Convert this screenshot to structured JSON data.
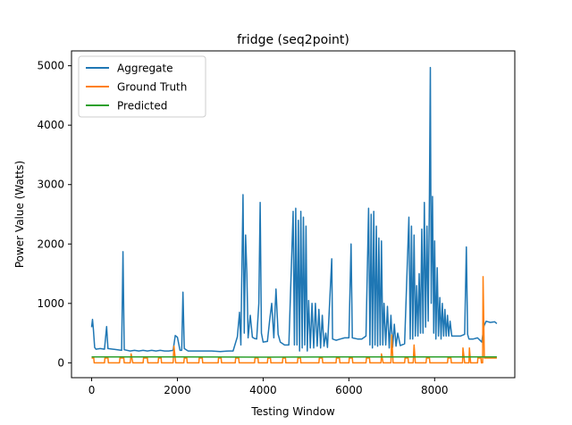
{
  "chart_data": {
    "type": "line",
    "title": "fridge (seq2point)",
    "xlabel": "Testing Window",
    "ylabel": "Power Value (Watts)",
    "xlim": [
      -470,
      9870
    ],
    "ylim": [
      -250,
      5250
    ],
    "xticks": [
      0,
      2000,
      4000,
      6000,
      8000
    ],
    "yticks": [
      0,
      1000,
      2000,
      3000,
      4000,
      5000
    ],
    "grid": false,
    "legend_position": "top-left",
    "series": [
      {
        "name": "Aggregate",
        "color": "#1f77b4",
        "points": [
          [
            0,
            600
          ],
          [
            20,
            730
          ],
          [
            40,
            560
          ],
          [
            70,
            260
          ],
          [
            100,
            230
          ],
          [
            200,
            240
          ],
          [
            300,
            230
          ],
          [
            350,
            610
          ],
          [
            380,
            240
          ],
          [
            500,
            230
          ],
          [
            700,
            210
          ],
          [
            730,
            1870
          ],
          [
            760,
            220
          ],
          [
            900,
            200
          ],
          [
            1000,
            210
          ],
          [
            1100,
            200
          ],
          [
            1200,
            210
          ],
          [
            1300,
            200
          ],
          [
            1400,
            210
          ],
          [
            1500,
            200
          ],
          [
            1600,
            210
          ],
          [
            1700,
            200
          ],
          [
            1800,
            200
          ],
          [
            1900,
            210
          ],
          [
            1950,
            460
          ],
          [
            2000,
            430
          ],
          [
            2060,
            210
          ],
          [
            2100,
            210
          ],
          [
            2130,
            1190
          ],
          [
            2160,
            240
          ],
          [
            2250,
            200
          ],
          [
            2400,
            200
          ],
          [
            2600,
            200
          ],
          [
            2800,
            200
          ],
          [
            3000,
            190
          ],
          [
            3200,
            200
          ],
          [
            3300,
            200
          ],
          [
            3400,
            440
          ],
          [
            3450,
            850
          ],
          [
            3480,
            300
          ],
          [
            3500,
            1300
          ],
          [
            3530,
            2830
          ],
          [
            3560,
            500
          ],
          [
            3590,
            2150
          ],
          [
            3620,
            1500
          ],
          [
            3650,
            420
          ],
          [
            3700,
            800
          ],
          [
            3750,
            430
          ],
          [
            3800,
            410
          ],
          [
            3850,
            400
          ],
          [
            3900,
            1000
          ],
          [
            3930,
            2700
          ],
          [
            3960,
            500
          ],
          [
            4000,
            350
          ],
          [
            4100,
            360
          ],
          [
            4150,
            700
          ],
          [
            4200,
            1000
          ],
          [
            4250,
            420
          ],
          [
            4300,
            1240
          ],
          [
            4350,
            480
          ],
          [
            4400,
            350
          ],
          [
            4500,
            300
          ],
          [
            4600,
            300
          ],
          [
            4700,
            2550
          ],
          [
            4730,
            300
          ],
          [
            4760,
            2600
          ],
          [
            4790,
            300
          ],
          [
            4820,
            2400
          ],
          [
            4850,
            200
          ],
          [
            4880,
            2550
          ],
          [
            4910,
            250
          ],
          [
            4940,
            2450
          ],
          [
            4970,
            300
          ],
          [
            5000,
            2300
          ],
          [
            5030,
            200
          ],
          [
            5060,
            1050
          ],
          [
            5100,
            250
          ],
          [
            5140,
            1000
          ],
          [
            5180,
            250
          ],
          [
            5220,
            1000
          ],
          [
            5260,
            280
          ],
          [
            5300,
            900
          ],
          [
            5340,
            250
          ],
          [
            5380,
            800
          ],
          [
            5420,
            280
          ],
          [
            5460,
            500
          ],
          [
            5500,
            260
          ],
          [
            5600,
            1750
          ],
          [
            5620,
            400
          ],
          [
            5700,
            380
          ],
          [
            5800,
            400
          ],
          [
            5900,
            420
          ],
          [
            6000,
            420
          ],
          [
            6050,
            2000
          ],
          [
            6080,
            420
          ],
          [
            6200,
            400
          ],
          [
            6300,
            400
          ],
          [
            6400,
            450
          ],
          [
            6460,
            2600
          ],
          [
            6490,
            300
          ],
          [
            6520,
            2500
          ],
          [
            6550,
            250
          ],
          [
            6580,
            2550
          ],
          [
            6610,
            300
          ],
          [
            6640,
            2300
          ],
          [
            6670,
            280
          ],
          [
            6700,
            2100
          ],
          [
            6730,
            300
          ],
          [
            6760,
            2050
          ],
          [
            6790,
            300
          ],
          [
            6820,
            1000
          ],
          [
            6860,
            300
          ],
          [
            6900,
            950
          ],
          [
            6940,
            250
          ],
          [
            6980,
            800
          ],
          [
            7020,
            260
          ],
          [
            7060,
            650
          ],
          [
            7100,
            280
          ],
          [
            7140,
            500
          ],
          [
            7200,
            290
          ],
          [
            7300,
            320
          ],
          [
            7400,
            2450
          ],
          [
            7430,
            400
          ],
          [
            7460,
            2300
          ],
          [
            7490,
            400
          ],
          [
            7520,
            2150
          ],
          [
            7550,
            450
          ],
          [
            7580,
            1300
          ],
          [
            7610,
            450
          ],
          [
            7640,
            1500
          ],
          [
            7670,
            500
          ],
          [
            7700,
            2250
          ],
          [
            7730,
            500
          ],
          [
            7760,
            2700
          ],
          [
            7790,
            600
          ],
          [
            7820,
            2300
          ],
          [
            7850,
            700
          ],
          [
            7880,
            2850
          ],
          [
            7900,
            4970
          ],
          [
            7920,
            1000
          ],
          [
            7950,
            2800
          ],
          [
            7980,
            500
          ],
          [
            8000,
            2050
          ],
          [
            8030,
            400
          ],
          [
            8060,
            1600
          ],
          [
            8090,
            450
          ],
          [
            8120,
            1100
          ],
          [
            8150,
            400
          ],
          [
            8180,
            1000
          ],
          [
            8210,
            450
          ],
          [
            8240,
            900
          ],
          [
            8270,
            450
          ],
          [
            8300,
            800
          ],
          [
            8330,
            450
          ],
          [
            8360,
            700
          ],
          [
            8400,
            450
          ],
          [
            8500,
            450
          ],
          [
            8600,
            450
          ],
          [
            8700,
            480
          ],
          [
            8740,
            1950
          ],
          [
            8770,
            480
          ],
          [
            8800,
            400
          ],
          [
            8900,
            400
          ],
          [
            9000,
            420
          ],
          [
            9100,
            350
          ],
          [
            9150,
            620
          ],
          [
            9200,
            700
          ],
          [
            9300,
            680
          ],
          [
            9400,
            690
          ],
          [
            9450,
            660
          ]
        ]
      },
      {
        "name": "Ground Truth",
        "color": "#ff7f0e",
        "points": [
          [
            0,
            80
          ],
          [
            50,
            80
          ],
          [
            60,
            0
          ],
          [
            300,
            0
          ],
          [
            310,
            80
          ],
          [
            380,
            80
          ],
          [
            390,
            0
          ],
          [
            650,
            0
          ],
          [
            660,
            80
          ],
          [
            750,
            80
          ],
          [
            760,
            0
          ],
          [
            900,
            0
          ],
          [
            920,
            150
          ],
          [
            960,
            0
          ],
          [
            1200,
            0
          ],
          [
            1210,
            80
          ],
          [
            1300,
            80
          ],
          [
            1310,
            0
          ],
          [
            1550,
            0
          ],
          [
            1560,
            80
          ],
          [
            1620,
            80
          ],
          [
            1630,
            0
          ],
          [
            1900,
            0
          ],
          [
            1920,
            280
          ],
          [
            1960,
            0
          ],
          [
            2150,
            0
          ],
          [
            2160,
            80
          ],
          [
            2220,
            80
          ],
          [
            2230,
            0
          ],
          [
            2500,
            0
          ],
          [
            2510,
            80
          ],
          [
            2580,
            80
          ],
          [
            2590,
            0
          ],
          [
            2950,
            0
          ],
          [
            2960,
            80
          ],
          [
            3020,
            80
          ],
          [
            3030,
            0
          ],
          [
            3350,
            0
          ],
          [
            3360,
            80
          ],
          [
            3430,
            80
          ],
          [
            3440,
            0
          ],
          [
            3800,
            0
          ],
          [
            3810,
            80
          ],
          [
            3880,
            80
          ],
          [
            3890,
            0
          ],
          [
            4100,
            0
          ],
          [
            4110,
            80
          ],
          [
            4170,
            80
          ],
          [
            4180,
            0
          ],
          [
            4450,
            0
          ],
          [
            4460,
            80
          ],
          [
            4520,
            80
          ],
          [
            4530,
            0
          ],
          [
            4800,
            0
          ],
          [
            4810,
            80
          ],
          [
            4870,
            80
          ],
          [
            4880,
            0
          ],
          [
            5300,
            0
          ],
          [
            5310,
            80
          ],
          [
            5380,
            80
          ],
          [
            5390,
            0
          ],
          [
            5700,
            0
          ],
          [
            5710,
            80
          ],
          [
            5780,
            80
          ],
          [
            5790,
            0
          ],
          [
            6000,
            0
          ],
          [
            6010,
            80
          ],
          [
            6080,
            80
          ],
          [
            6090,
            0
          ],
          [
            6400,
            0
          ],
          [
            6410,
            80
          ],
          [
            6480,
            80
          ],
          [
            6490,
            0
          ],
          [
            6750,
            0
          ],
          [
            6760,
            150
          ],
          [
            6800,
            0
          ],
          [
            6980,
            0
          ],
          [
            7000,
            470
          ],
          [
            7030,
            0
          ],
          [
            7300,
            0
          ],
          [
            7310,
            80
          ],
          [
            7380,
            80
          ],
          [
            7390,
            0
          ],
          [
            7500,
            0
          ],
          [
            7520,
            300
          ],
          [
            7550,
            0
          ],
          [
            7800,
            0
          ],
          [
            7810,
            80
          ],
          [
            7880,
            80
          ],
          [
            7890,
            0
          ],
          [
            8300,
            0
          ],
          [
            8310,
            80
          ],
          [
            8380,
            80
          ],
          [
            8390,
            0
          ],
          [
            8650,
            0
          ],
          [
            8660,
            250
          ],
          [
            8700,
            0
          ],
          [
            8800,
            0
          ],
          [
            8810,
            250
          ],
          [
            8840,
            0
          ],
          [
            9000,
            0
          ],
          [
            9010,
            80
          ],
          [
            9080,
            80
          ],
          [
            9090,
            0
          ],
          [
            9120,
            0
          ],
          [
            9130,
            1450
          ],
          [
            9160,
            80
          ],
          [
            9450,
            80
          ]
        ]
      },
      {
        "name": "Predicted",
        "color": "#2ca02c",
        "points": [
          [
            0,
            100
          ],
          [
            2000,
            100
          ],
          [
            4000,
            95
          ],
          [
            6000,
            100
          ],
          [
            8000,
            100
          ],
          [
            9450,
            100
          ]
        ]
      }
    ]
  }
}
